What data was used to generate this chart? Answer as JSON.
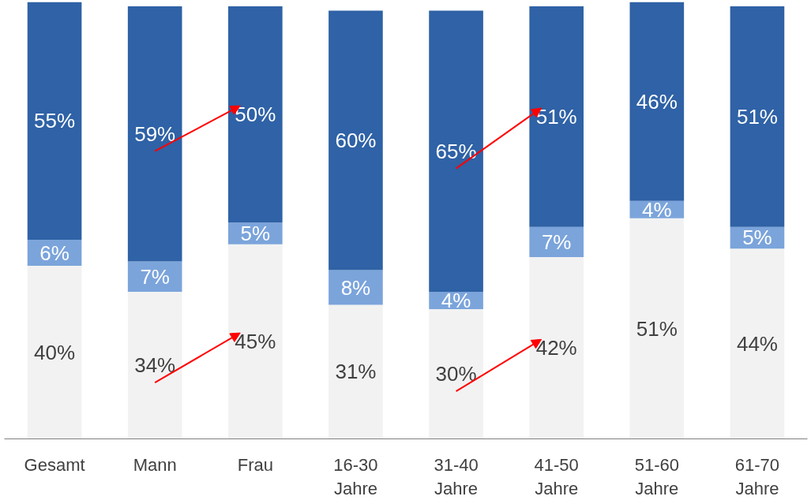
{
  "chart_data": {
    "type": "bar",
    "stacked": true,
    "tick_labels": "x",
    "categories": [
      "Gesamt",
      "Mann",
      "Frau",
      "16-30 Jahre",
      "31-40 Jahre",
      "41-50 Jahre",
      "51-60 Jahre",
      "61-70 Jahre"
    ],
    "series": [
      {
        "color": "#f2f2f2",
        "values": [
          40,
          34,
          45,
          31,
          30,
          42,
          51,
          44
        ],
        "value_labels": [
          "40%",
          "34%",
          "45%",
          "31%",
          "30%",
          "42%",
          "51%",
          "44%"
        ]
      },
      {
        "color": "#7ba4db",
        "values": [
          6,
          7,
          5,
          8,
          4,
          7,
          4,
          5
        ],
        "value_labels": [
          "6%",
          "7%",
          "5%",
          "8%",
          "4%",
          "7%",
          "4%",
          "5%"
        ]
      },
      {
        "color": "#2f62a6",
        "values": [
          55,
          59,
          50,
          60,
          65,
          51,
          46,
          51
        ],
        "value_labels": [
          "55%",
          "59%",
          "50%",
          "60%",
          "65%",
          "51%",
          "46%",
          "51%"
        ]
      }
    ]
  }
}
